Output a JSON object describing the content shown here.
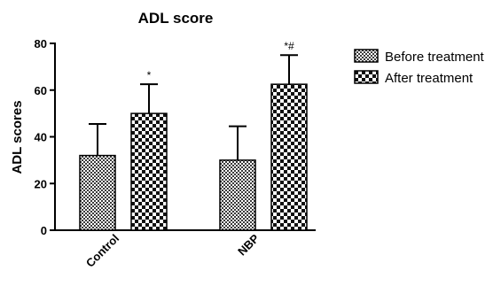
{
  "chart_data": {
    "type": "bar",
    "title": "ADL score",
    "xlabel": "",
    "ylabel": "ADL scores",
    "ylim": [
      0,
      80
    ],
    "yticks": [
      0,
      20,
      40,
      60,
      80
    ],
    "categories": [
      "Control",
      "NBP"
    ],
    "series": [
      {
        "name": "Before treatment",
        "pattern": "fine-check",
        "values": [
          32,
          30
        ],
        "errors": [
          13.5,
          14.5
        ]
      },
      {
        "name": "After treatment",
        "pattern": "coarse-check",
        "values": [
          50,
          62.5
        ],
        "errors": [
          12.5,
          12.5
        ]
      }
    ],
    "annotations": [
      {
        "category": "Control",
        "series": "After treatment",
        "text": "*"
      },
      {
        "category": "NBP",
        "series": "After treatment",
        "text": "*#"
      }
    ],
    "legend_position": "top-right",
    "grid": false,
    "colors": {
      "ink": "#000000",
      "bar_fill_dark": "#444444",
      "bar_fill_light": "#ffffff"
    }
  }
}
